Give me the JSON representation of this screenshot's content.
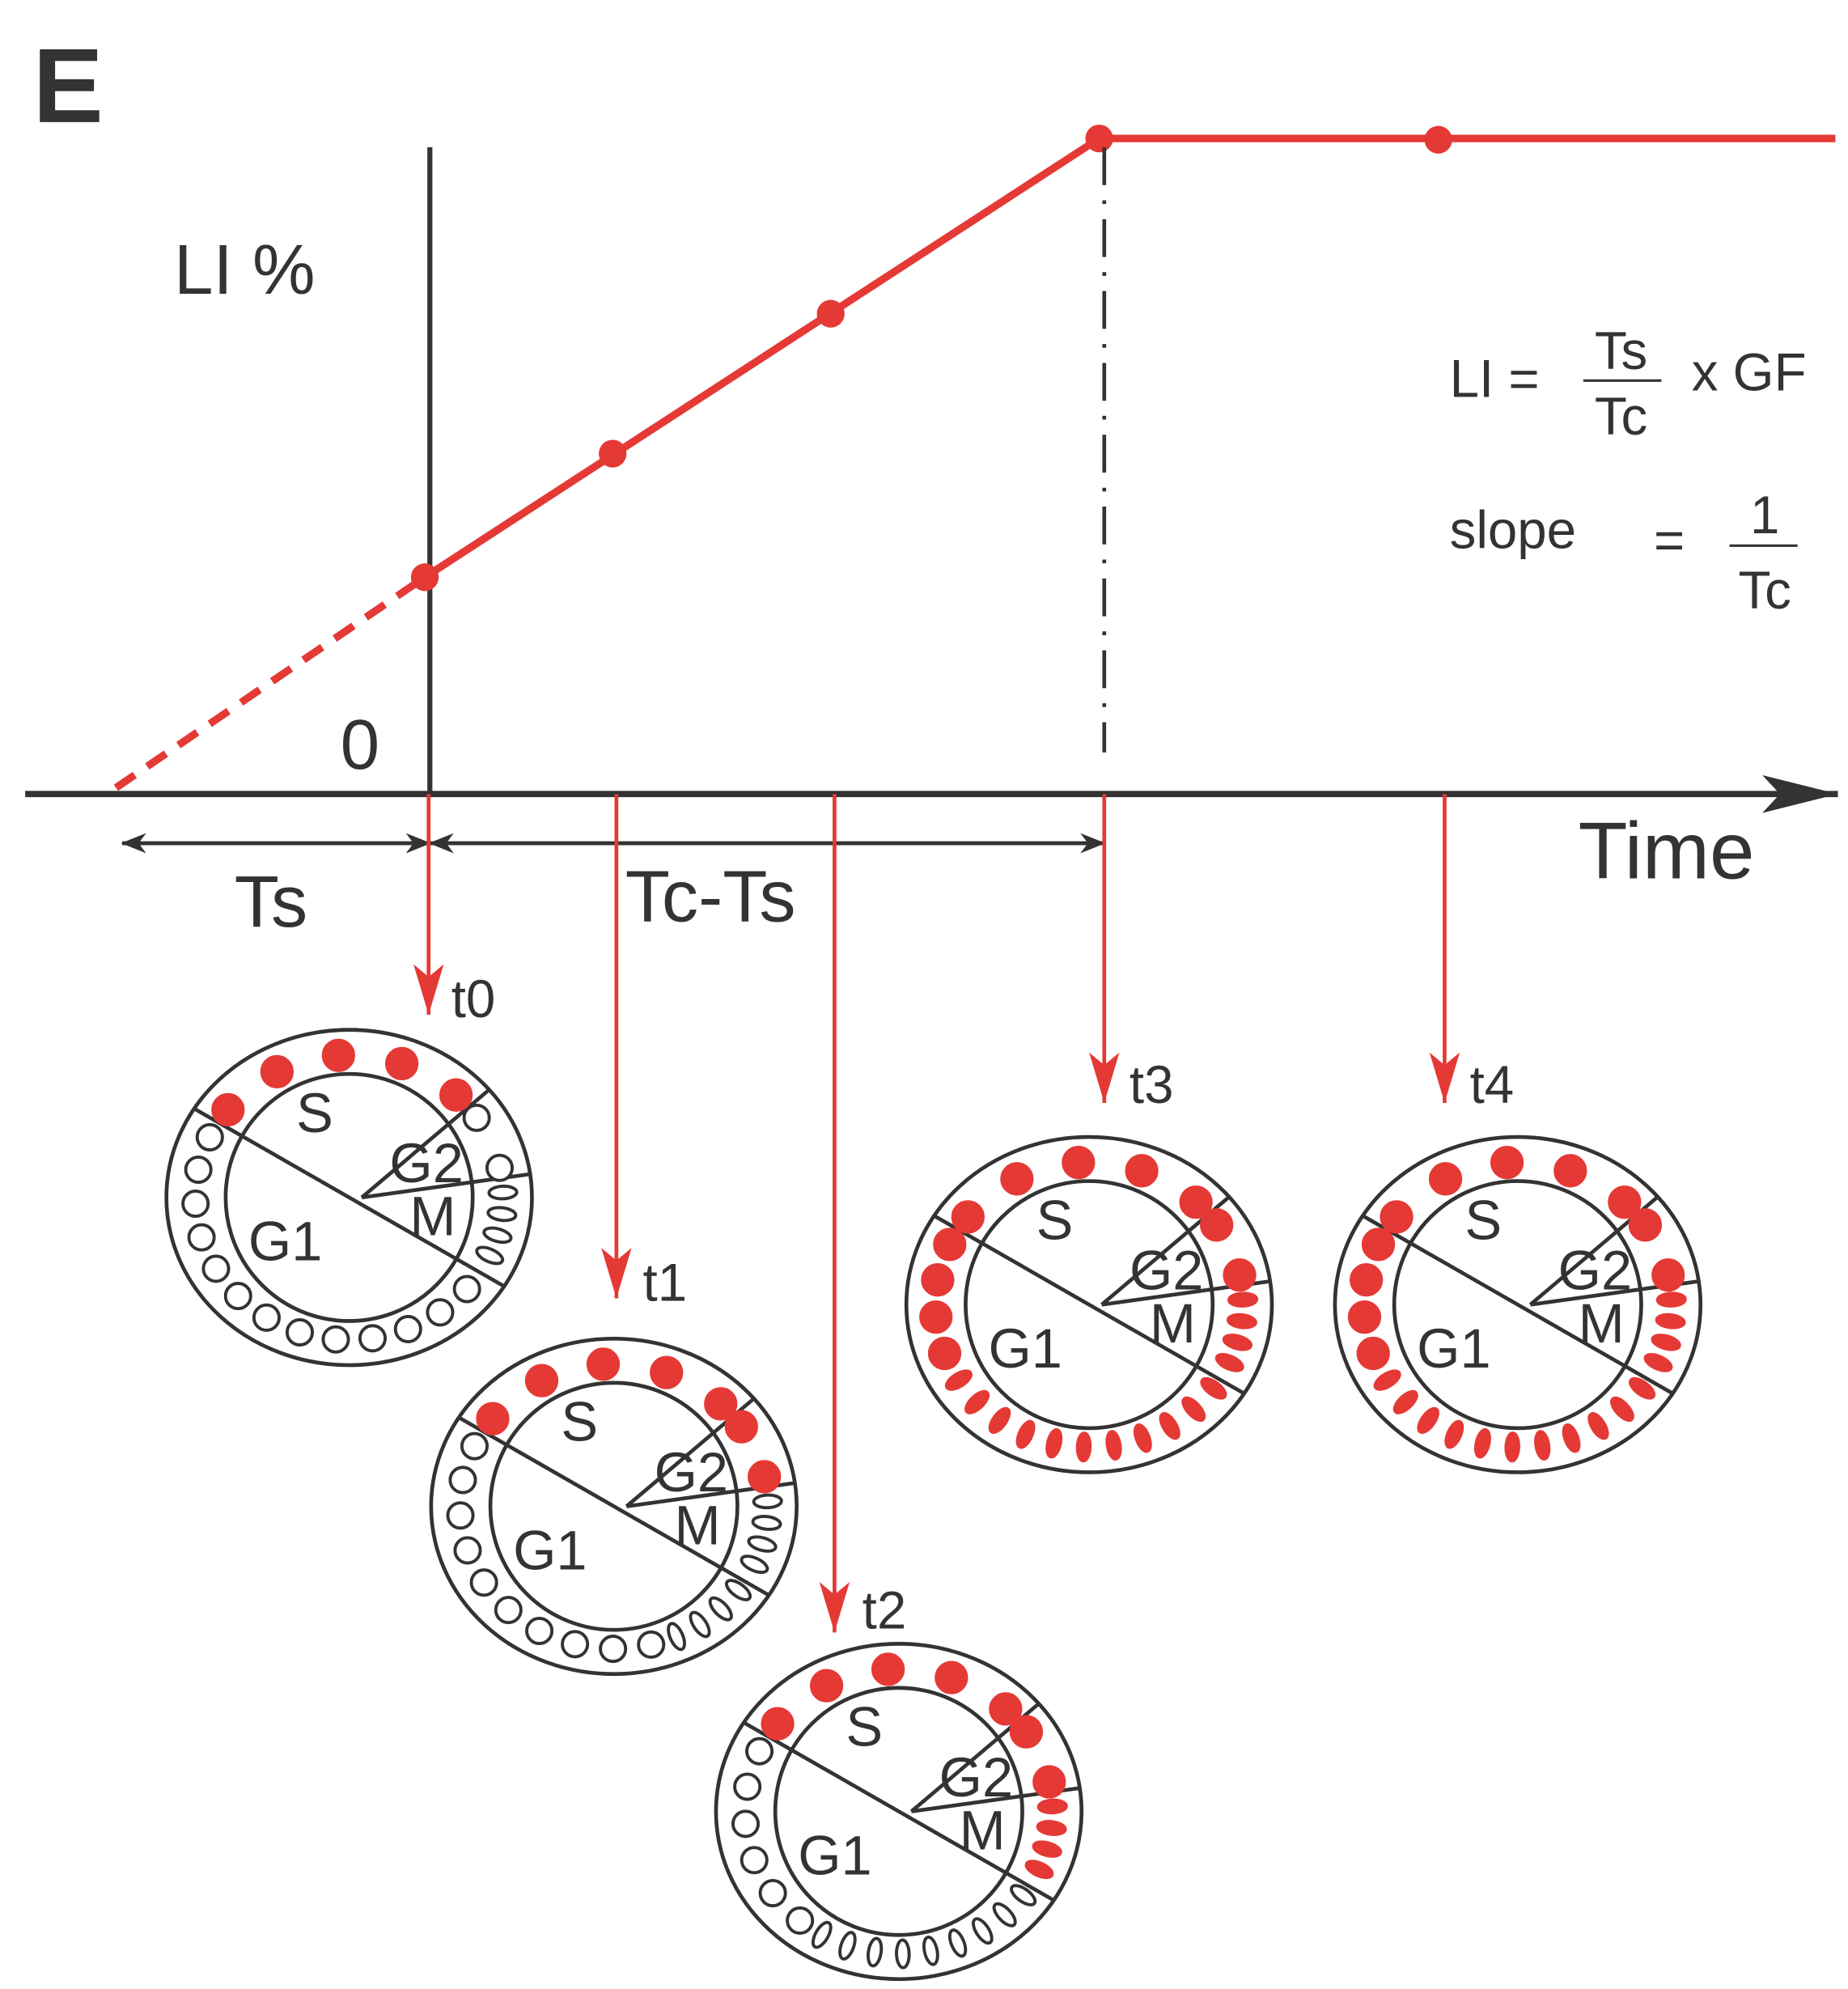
{
  "panel_label": "E",
  "y_axis_label": "LI %",
  "origin_label": "0",
  "x_axis_label": "Time",
  "intervals": [
    "Ts",
    "Tc-Ts"
  ],
  "formulas": {
    "li": {
      "lhs": "LI =",
      "numerator": "Ts",
      "denominator": "Tc",
      "rhs": "x GF"
    },
    "slope": {
      "lhs": "slope",
      "equals": "=",
      "numerator": "1",
      "denominator": "Tc"
    }
  },
  "timepoints": [
    "t0",
    "t1",
    "t2",
    "t3",
    "t4"
  ],
  "cells": [
    {
      "phases": [
        "S",
        "G2",
        "M",
        "G1"
      ]
    },
    {
      "phases": [
        "S",
        "G2",
        "M",
        "G1"
      ]
    },
    {
      "phases": [
        "S",
        "G2",
        "M",
        "G1"
      ]
    },
    {
      "phases": [
        "S",
        "G2",
        "M",
        "G1"
      ]
    },
    {
      "phases": [
        "S",
        "G2",
        "M",
        "G1"
      ]
    }
  ]
}
